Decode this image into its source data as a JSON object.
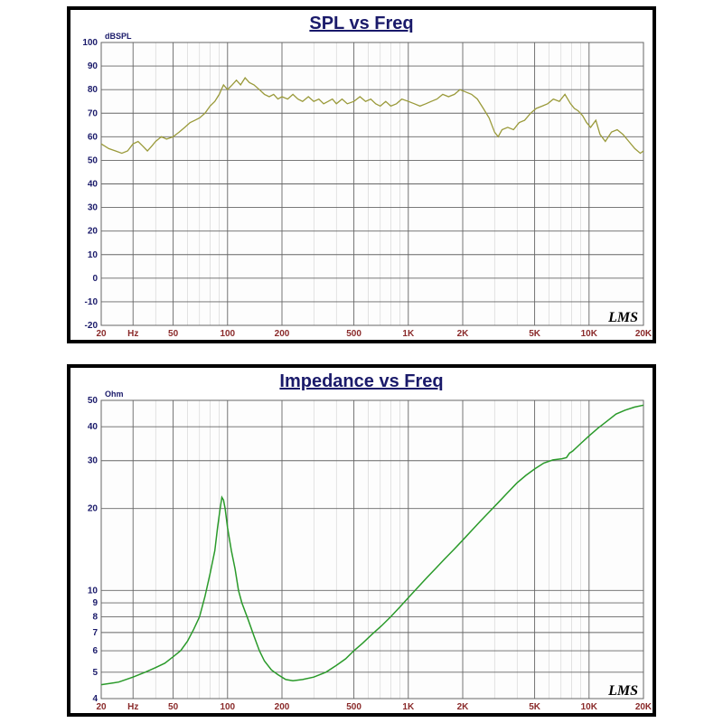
{
  "spl_chart": {
    "title": "SPL vs Freq",
    "ylabel": "dBSPL",
    "type": "line",
    "x_scale": "log",
    "y_scale": "linear",
    "xlim": [
      20,
      20000
    ],
    "ylim": [
      -20,
      100
    ],
    "ytick_step": 10,
    "xtick_labels": [
      "20",
      "Hz",
      "50",
      "100",
      "200",
      "500",
      "1K",
      "2K",
      "5K",
      "10K",
      "20K"
    ],
    "xtick_values": [
      20,
      30,
      50,
      100,
      200,
      500,
      1000,
      2000,
      5000,
      10000,
      20000
    ],
    "line_color": "#9a9a3a",
    "title_color": "#1a1a6a",
    "ytick_color": "#1a1a6a",
    "xtick_color": "#8a2a2a",
    "grid_minor_color": "#c8c8c8",
    "grid_major_color": "#666666",
    "border_color": "#000000",
    "plot_background": "#fdfdfd",
    "line_width": 1.3,
    "title_fontsize": 20,
    "tick_fontsize": 10,
    "watermark": "LMS",
    "data": [
      [
        20,
        57
      ],
      [
        22,
        55
      ],
      [
        24,
        54
      ],
      [
        26,
        53
      ],
      [
        28,
        54
      ],
      [
        30,
        57
      ],
      [
        32,
        58
      ],
      [
        34,
        56
      ],
      [
        36,
        54
      ],
      [
        38,
        56
      ],
      [
        40,
        58
      ],
      [
        43,
        60
      ],
      [
        46,
        59
      ],
      [
        50,
        60
      ],
      [
        54,
        62
      ],
      [
        58,
        64
      ],
      [
        62,
        66
      ],
      [
        66,
        67
      ],
      [
        70,
        68
      ],
      [
        75,
        70
      ],
      [
        80,
        73
      ],
      [
        85,
        75
      ],
      [
        90,
        78
      ],
      [
        95,
        82
      ],
      [
        100,
        80
      ],
      [
        106,
        82
      ],
      [
        112,
        84
      ],
      [
        118,
        82
      ],
      [
        125,
        85
      ],
      [
        132,
        83
      ],
      [
        140,
        82
      ],
      [
        150,
        80
      ],
      [
        160,
        78
      ],
      [
        170,
        77
      ],
      [
        180,
        78
      ],
      [
        190,
        76
      ],
      [
        200,
        77
      ],
      [
        215,
        76
      ],
      [
        230,
        78
      ],
      [
        245,
        76
      ],
      [
        260,
        75
      ],
      [
        280,
        77
      ],
      [
        300,
        75
      ],
      [
        320,
        76
      ],
      [
        340,
        74
      ],
      [
        360,
        75
      ],
      [
        380,
        76
      ],
      [
        400,
        74
      ],
      [
        430,
        76
      ],
      [
        460,
        74
      ],
      [
        500,
        75
      ],
      [
        540,
        77
      ],
      [
        580,
        75
      ],
      [
        620,
        76
      ],
      [
        660,
        74
      ],
      [
        700,
        73
      ],
      [
        750,
        75
      ],
      [
        800,
        73
      ],
      [
        860,
        74
      ],
      [
        920,
        76
      ],
      [
        1000,
        75
      ],
      [
        1080,
        74
      ],
      [
        1160,
        73
      ],
      [
        1250,
        74
      ],
      [
        1340,
        75
      ],
      [
        1440,
        76
      ],
      [
        1550,
        78
      ],
      [
        1670,
        77
      ],
      [
        1800,
        78
      ],
      [
        1930,
        80
      ],
      [
        2080,
        79
      ],
      [
        2240,
        78
      ],
      [
        2410,
        76
      ],
      [
        2600,
        72
      ],
      [
        2800,
        68
      ],
      [
        3000,
        62
      ],
      [
        3140,
        60
      ],
      [
        3300,
        63
      ],
      [
        3550,
        64
      ],
      [
        3820,
        63
      ],
      [
        4100,
        66
      ],
      [
        4400,
        67
      ],
      [
        4750,
        70
      ],
      [
        5100,
        72
      ],
      [
        5500,
        73
      ],
      [
        5900,
        74
      ],
      [
        6350,
        76
      ],
      [
        6850,
        75
      ],
      [
        7350,
        78
      ],
      [
        7900,
        74
      ],
      [
        8300,
        72
      ],
      [
        8700,
        71
      ],
      [
        9200,
        69
      ],
      [
        9700,
        66
      ],
      [
        10200,
        64
      ],
      [
        10900,
        67
      ],
      [
        11500,
        61
      ],
      [
        12300,
        58
      ],
      [
        13300,
        62
      ],
      [
        14300,
        63
      ],
      [
        15400,
        61
      ],
      [
        16600,
        58
      ],
      [
        17900,
        55
      ],
      [
        19200,
        53
      ],
      [
        20000,
        54
      ]
    ]
  },
  "impedance_chart": {
    "title": "Impedance vs Freq",
    "ylabel": "Ohm",
    "type": "line",
    "x_scale": "log",
    "y_scale": "log",
    "xlim": [
      20,
      20000
    ],
    "ylim": [
      4,
      50
    ],
    "ytick_values": [
      4,
      5,
      6,
      7,
      8,
      9,
      10,
      20,
      30,
      40,
      50
    ],
    "ytick_labels": [
      "4",
      "5",
      "6",
      "7",
      "8",
      "9",
      "10",
      "20",
      "30",
      "40",
      "50"
    ],
    "xtick_labels": [
      "20",
      "Hz",
      "50",
      "100",
      "200",
      "500",
      "1K",
      "2K",
      "5K",
      "10K",
      "20K"
    ],
    "xtick_values": [
      20,
      30,
      50,
      100,
      200,
      500,
      1000,
      2000,
      5000,
      10000,
      20000
    ],
    "line_color": "#2a9a2a",
    "title_color": "#1a1a6a",
    "ytick_color": "#1a1a6a",
    "xtick_color": "#8a2a2a",
    "grid_minor_color": "#c8c8c8",
    "grid_major_color": "#666666",
    "border_color": "#000000",
    "plot_background": "#fdfdfd",
    "line_width": 1.5,
    "title_fontsize": 20,
    "tick_fontsize": 10,
    "watermark": "LMS",
    "data": [
      [
        20,
        4.5
      ],
      [
        25,
        4.6
      ],
      [
        30,
        4.8
      ],
      [
        35,
        5.0
      ],
      [
        40,
        5.2
      ],
      [
        45,
        5.4
      ],
      [
        50,
        5.7
      ],
      [
        55,
        6.0
      ],
      [
        60,
        6.5
      ],
      [
        65,
        7.2
      ],
      [
        70,
        8.0
      ],
      [
        75,
        9.5
      ],
      [
        80,
        11.5
      ],
      [
        85,
        14
      ],
      [
        88,
        17
      ],
      [
        91,
        20
      ],
      [
        93,
        22
      ],
      [
        95,
        21.5
      ],
      [
        97,
        20
      ],
      [
        100,
        17
      ],
      [
        105,
        14
      ],
      [
        110,
        12
      ],
      [
        115,
        10
      ],
      [
        120,
        9
      ],
      [
        130,
        7.8
      ],
      [
        140,
        6.8
      ],
      [
        150,
        6.0
      ],
      [
        160,
        5.5
      ],
      [
        175,
        5.1
      ],
      [
        190,
        4.9
      ],
      [
        210,
        4.7
      ],
      [
        230,
        4.65
      ],
      [
        260,
        4.7
      ],
      [
        300,
        4.8
      ],
      [
        350,
        5.0
      ],
      [
        400,
        5.3
      ],
      [
        450,
        5.6
      ],
      [
        500,
        6.0
      ],
      [
        560,
        6.4
      ],
      [
        630,
        6.9
      ],
      [
        710,
        7.4
      ],
      [
        800,
        8.0
      ],
      [
        900,
        8.7
      ],
      [
        1000,
        9.4
      ],
      [
        1120,
        10.2
      ],
      [
        1260,
        11.1
      ],
      [
        1410,
        12.0
      ],
      [
        1580,
        13.0
      ],
      [
        1780,
        14.1
      ],
      [
        2000,
        15.3
      ],
      [
        2240,
        16.6
      ],
      [
        2510,
        18.0
      ],
      [
        2820,
        19.5
      ],
      [
        3160,
        21.1
      ],
      [
        3550,
        22.9
      ],
      [
        3980,
        24.8
      ],
      [
        4470,
        26.5
      ],
      [
        5010,
        28.0
      ],
      [
        5620,
        29.4
      ],
      [
        6310,
        30.2
      ],
      [
        7080,
        30.5
      ],
      [
        7500,
        30.8
      ],
      [
        7800,
        32.0
      ],
      [
        8100,
        32.5
      ],
      [
        8910,
        34.5
      ],
      [
        10000,
        37.0
      ],
      [
        11200,
        39.5
      ],
      [
        12600,
        42.0
      ],
      [
        14100,
        44.5
      ],
      [
        15800,
        46.0
      ],
      [
        17800,
        47.2
      ],
      [
        20000,
        48.0
      ]
    ]
  }
}
